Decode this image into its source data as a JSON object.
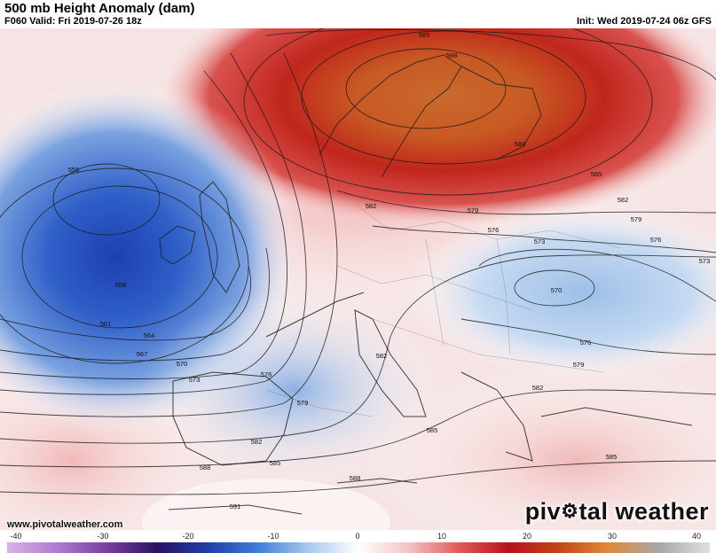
{
  "header": {
    "title": "500 mb Height Anomaly (dam)",
    "valid": "F060 Valid: Fri 2019-07-26 18z",
    "init": "Init: Wed 2019-07-24 06z GFS"
  },
  "map": {
    "contour_labels": [
      {
        "text": "555"
      },
      {
        "text": "558"
      },
      {
        "text": "561"
      },
      {
        "text": "564"
      },
      {
        "text": "567"
      },
      {
        "text": "570"
      },
      {
        "text": "573"
      },
      {
        "text": "576"
      },
      {
        "text": "579"
      },
      {
        "text": "582"
      },
      {
        "text": "585"
      },
      {
        "text": "588"
      },
      {
        "text": "591"
      },
      {
        "text": "585"
      },
      {
        "text": "588"
      },
      {
        "text": "588"
      },
      {
        "text": "585"
      },
      {
        "text": "582"
      },
      {
        "text": "579"
      },
      {
        "text": "576"
      },
      {
        "text": "573"
      },
      {
        "text": "570"
      },
      {
        "text": "573"
      },
      {
        "text": "576"
      },
      {
        "text": "579"
      },
      {
        "text": "582"
      },
      {
        "text": "582"
      },
      {
        "text": "579"
      },
      {
        "text": "576"
      },
      {
        "text": "585"
      },
      {
        "text": "585"
      },
      {
        "text": "588"
      },
      {
        "text": "582"
      }
    ]
  },
  "footer": {
    "website": "www.pivotalweather.com",
    "brand_part1": "piv",
    "brand_gear": "⚙",
    "brand_part2": "tal weather"
  },
  "colorbar": {
    "ticks": [
      "-40",
      "-30",
      "-20",
      "-10",
      "0",
      "10",
      "20",
      "30",
      "40"
    ],
    "colors": [
      "#d9b3e6",
      "#b07ad0",
      "#7a3f9e",
      "#2a1260",
      "#1f3ea8",
      "#3e7fd8",
      "#a9c8ee",
      "#ffffff",
      "#f3c4c4",
      "#e05a5a",
      "#b5121b",
      "#c2461a",
      "#e08a3c",
      "#a8a8a8",
      "#e0e0e0"
    ]
  }
}
